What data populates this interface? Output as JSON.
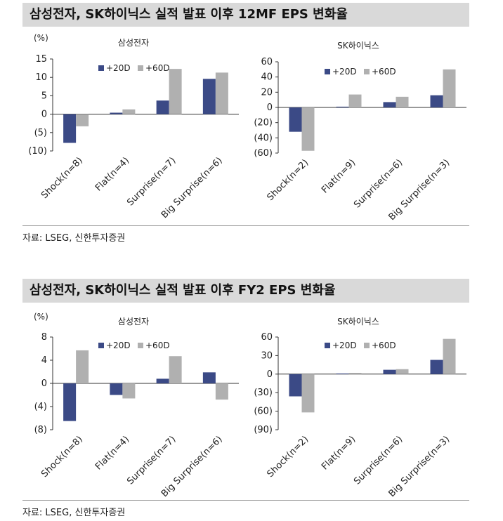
{
  "panels": [
    {
      "title": "삼성전자, SK하이닉스 실적 발표 이후 12MF EPS 변화율",
      "source": "자료: LSEG, 신한투자증권",
      "charts": [
        {
          "title": "삼성전자",
          "unit": "(%)",
          "ticks": [
            "15",
            "10",
            "5",
            "0",
            "(5)",
            "(10)"
          ]
        },
        {
          "title": "SK하이닉스",
          "unit": "",
          "ticks": [
            "60",
            "40",
            "20",
            "0",
            "(20)",
            "(40)",
            "(60)"
          ]
        }
      ]
    },
    {
      "title": "삼성전자, SK하이닉스 실적 발표 이후 FY2 EPS 변화율",
      "source": "자료: LSEG, 신한투자증권",
      "charts": [
        {
          "title": "삼성전자",
          "unit": "(%)",
          "ticks": [
            "8",
            "4",
            "0",
            "(4)",
            "(8)"
          ]
        },
        {
          "title": "SK하이닉스",
          "unit": "",
          "ticks": [
            "60",
            "30",
            "0",
            "(30)",
            "(60)",
            "(90)"
          ]
        }
      ]
    }
  ],
  "chart_data": [
    {
      "type": "bar",
      "title": "삼성전자",
      "ylabel": "(%)",
      "categories": [
        "Shock(n=8)",
        "Flat(n=4)",
        "Surprise(n=7)",
        "Big Surprise(n=6)"
      ],
      "series": [
        {
          "name": "+20D",
          "values": [
            -7.8,
            0.4,
            3.7,
            9.6
          ],
          "color": "#3b4a86"
        },
        {
          "name": "+60D",
          "values": [
            -3.3,
            1.3,
            12.3,
            11.3
          ],
          "color": "#b0b0b0"
        }
      ],
      "ylim": [
        -10,
        15
      ],
      "legend": "top-left"
    },
    {
      "type": "bar",
      "title": "SK하이닉스",
      "categories": [
        "Shock(n=2)",
        "Flat(n=9)",
        "Surprise(n=6)",
        "Big Surprise(n=3)"
      ],
      "series": [
        {
          "name": "+20D",
          "values": [
            -32,
            1,
            7,
            16
          ],
          "color": "#3b4a86"
        },
        {
          "name": "+60D",
          "values": [
            -57,
            17,
            14,
            50
          ],
          "color": "#b0b0b0"
        }
      ],
      "ylim": [
        -60,
        60
      ],
      "legend": "top-left"
    },
    {
      "type": "bar",
      "title": "삼성전자",
      "ylabel": "(%)",
      "categories": [
        "Shock(n=8)",
        "Flat(n=4)",
        "Surprise(n=7)",
        "Big Surprise(n=6)"
      ],
      "series": [
        {
          "name": "+20D",
          "values": [
            -6.5,
            -2.0,
            0.8,
            1.9
          ],
          "color": "#3b4a86"
        },
        {
          "name": "+60D",
          "values": [
            5.7,
            -2.6,
            4.7,
            -2.8
          ],
          "color": "#b0b0b0"
        }
      ],
      "ylim": [
        -8,
        8
      ],
      "legend": "top-left"
    },
    {
      "type": "bar",
      "title": "SK하이닉스",
      "categories": [
        "Shock(n=2)",
        "Flat(n=9)",
        "Surprise(n=6)",
        "Big Surprise(n=3)"
      ],
      "series": [
        {
          "name": "+20D",
          "values": [
            -36,
            1,
            7,
            23
          ],
          "color": "#3b4a86"
        },
        {
          "name": "+60D",
          "values": [
            -62,
            2,
            8,
            57
          ],
          "color": "#b0b0b0"
        }
      ],
      "ylim": [
        -90,
        60
      ],
      "legend": "top-left"
    }
  ]
}
